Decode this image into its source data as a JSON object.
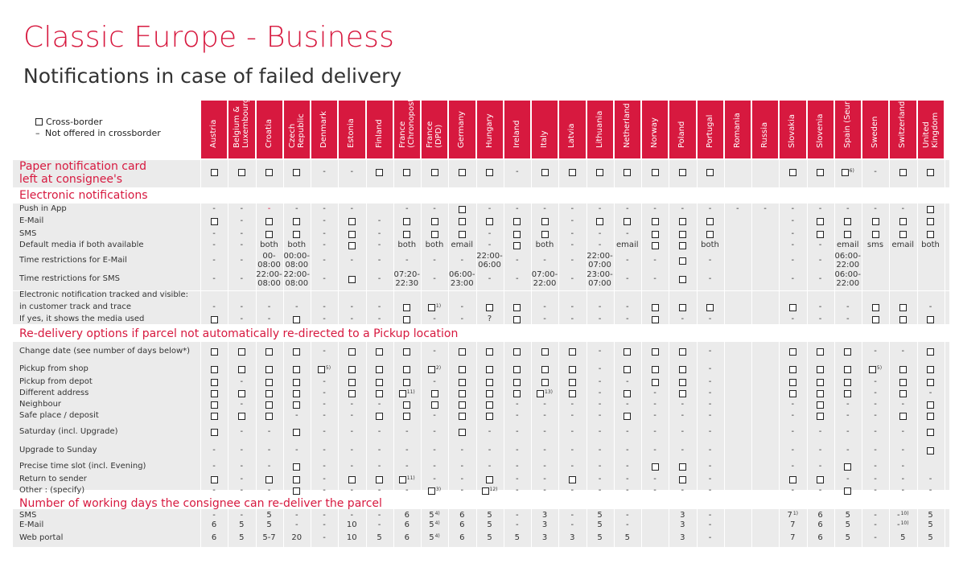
{
  "title": "Classic Europe - Business",
  "subtitle": "Notifications in case of failed delivery",
  "legend": {
    "box_text": "Cross-border",
    "dash_text": "Not offered in crossborder"
  },
  "countries": [
    {
      "name": "Austria"
    },
    {
      "name": "Belgium &",
      "name2": "Luxembourg"
    },
    {
      "name": "Croatia"
    },
    {
      "name": "Czech",
      "name2": "Republic"
    },
    {
      "name": "Denmark"
    },
    {
      "name": "Estonia"
    },
    {
      "name": "Finland"
    },
    {
      "name": "France",
      "name2": "(Chronopost)"
    },
    {
      "name": "France",
      "name2": "(DPD)"
    },
    {
      "name": "Germany"
    },
    {
      "name": "Hungary"
    },
    {
      "name": "Ireland"
    },
    {
      "name": "Italy"
    },
    {
      "name": "Latvia"
    },
    {
      "name": "Lithuania"
    },
    {
      "name": "Netherland"
    },
    {
      "name": "Norway"
    },
    {
      "name": "Poland"
    },
    {
      "name": "Portugal"
    },
    {
      "name": "Romania"
    },
    {
      "name": "Russia"
    },
    {
      "name": "Slovakia"
    },
    {
      "name": "Slovenia"
    },
    {
      "name": "Spain (Seur)"
    },
    {
      "name": "Sweden"
    },
    {
      "name": "Switzerland"
    },
    {
      "name": "United",
      "name2": "Kingdom"
    }
  ],
  "sections": [
    {
      "title": "Paper notification card",
      "title2": "left at consignee's",
      "y": 199,
      "rows": [
        {
          "label": "",
          "y": 214,
          "cells": [
            "x",
            "x",
            "x",
            "x",
            "-",
            "-",
            "x",
            "x",
            "x",
            "x",
            "x",
            "-",
            "x",
            "x",
            "x",
            "x",
            "x",
            "x",
            "x",
            "",
            "",
            "x",
            "x",
            "x^6)",
            "-",
            "x",
            "x"
          ]
        }
      ]
    },
    {
      "title": "Electronic notifications",
      "y": 235,
      "rows": [
        {
          "label": "Push in App",
          "y": 260,
          "cells": [
            "-",
            "-",
            "r-",
            "-",
            "-",
            "-",
            "",
            "-",
            "-",
            "x",
            "-",
            "-",
            "-",
            "-",
            "-",
            "-",
            "-",
            "-",
            "-",
            "-",
            "-",
            "-",
            "-",
            "-",
            "-",
            "-",
            "x"
          ]
        },
        {
          "label": "E-Mail",
          "y": 275,
          "cells": [
            "x",
            "-",
            "x",
            "x",
            "-",
            "x",
            "-",
            "x",
            "x",
            "x",
            "x",
            "x",
            "x",
            "-",
            "x",
            "x",
            "x",
            "x",
            "x",
            "",
            "",
            "-",
            "x",
            "x",
            "x",
            "x",
            "x"
          ]
        },
        {
          "label": "SMS",
          "y": 291,
          "cells": [
            "-",
            "-",
            "x",
            "x",
            "-",
            "x",
            "-",
            "x",
            "x",
            "x",
            "-",
            "x",
            "x",
            "-",
            "-",
            "-",
            "x",
            "x",
            "x",
            "",
            "",
            "-",
            "x",
            "x",
            "x",
            "x",
            "x"
          ]
        },
        {
          "label": "Default media if both available",
          "y": 305,
          "cells": [
            "-",
            "-",
            "both",
            "both",
            "-",
            "x",
            "-",
            "both",
            "both",
            "email",
            "-",
            "x",
            "both",
            "-",
            "-",
            "email",
            "x",
            "x",
            "both",
            "",
            "",
            "-",
            "-",
            "email",
            "sms",
            "email",
            "both"
          ]
        },
        {
          "label": "Time restrictions for E-Mail",
          "y": 324,
          "cells": [
            "-",
            "-",
            "00-|08:00",
            "00:00-|08:00",
            "-",
            "-",
            "-",
            "-",
            "-",
            "-",
            "22:00-|06:00",
            "-",
            "-",
            "-",
            "22:00-|07:00",
            "-",
            "-",
            "x",
            "-",
            "",
            "",
            "-",
            "-",
            "06:00-|22:00",
            "",
            "",
            ""
          ]
        },
        {
          "label": "Time restrictions for SMS",
          "y": 347,
          "cells": [
            "-",
            "-",
            "22:00-|08:00",
            "22:00-|08:00",
            "-",
            "x",
            "-",
            "07:20-|22:30",
            "-",
            "06:00-|23:00",
            "-",
            "-",
            "07:00-|22:00",
            "-",
            "23:00-|07:00",
            "-",
            "-",
            "x",
            "-",
            "",
            "",
            "-",
            "-",
            "06:00-|22:00",
            "",
            "",
            ""
          ]
        }
      ]
    },
    {
      "title": "",
      "y": 0,
      "rows": [
        {
          "label": "Electronic notification tracked and visible:",
          "y": 367,
          "cells": []
        },
        {
          "label": "in customer track and trace",
          "y": 382,
          "cells": [
            "-",
            "-",
            "-",
            "-",
            "-",
            "-",
            "-",
            "x",
            "x^1)",
            "-",
            "x",
            "x",
            "-",
            "-",
            "-",
            "-",
            "x",
            "x",
            "x",
            "",
            "",
            "x",
            "-",
            "-",
            "x",
            "x",
            "-"
          ]
        },
        {
          "label": "If yes, it shows the media used",
          "y": 397,
          "cells": [
            "x",
            "-",
            "-",
            "x",
            "-",
            "-",
            "-",
            "x",
            "-",
            "-",
            "?",
            "x",
            "-",
            "-",
            "-",
            "-",
            "x",
            "-",
            "-",
            "",
            "",
            "-",
            "-",
            "-",
            "x",
            "x",
            "x"
          ]
        }
      ]
    },
    {
      "title": "Re-delivery options if parcel not automatically re-directed to a Pickup location",
      "y": 407,
      "rows": [
        {
          "label": "Change date (see number of days below*)",
          "y": 437,
          "cells": [
            "x",
            "x",
            "x",
            "x",
            "-",
            "x",
            "x",
            "x",
            "-",
            "x",
            "x",
            "x",
            "x",
            "x",
            "-",
            "x",
            "x",
            "x",
            "-",
            "",
            "",
            "x",
            "x",
            "x",
            "-",
            "-",
            "x"
          ]
        },
        {
          "label": "Pickup from shop",
          "y": 459,
          "cells": [
            "x",
            "x",
            "x",
            "x",
            "x^5)",
            "x",
            "x",
            "x",
            "x^2)",
            "x",
            "x",
            "x",
            "x",
            "x",
            "-",
            "x",
            "x",
            "x",
            "-",
            "",
            "",
            "x",
            "x",
            "x",
            "x^5)",
            "x",
            "x"
          ]
        },
        {
          "label": "Pickup from depot",
          "y": 475,
          "cells": [
            "x",
            "-",
            "x",
            "x",
            "-",
            "x",
            "x",
            "x",
            "-",
            "x",
            "x",
            "x",
            "x",
            "x",
            "-",
            "-",
            "x",
            "x",
            "-",
            "",
            "",
            "x",
            "x",
            "x",
            "-",
            "x",
            "x"
          ]
        },
        {
          "label": "Different address",
          "y": 489,
          "cells": [
            "x",
            "x",
            "x",
            "x",
            "-",
            "x",
            "x",
            "x^11)",
            "x",
            "x",
            "x",
            "x",
            "x^13)",
            "x",
            "-",
            "x",
            "-",
            "x",
            "-",
            "",
            "",
            "x",
            "x",
            "x",
            "-",
            "x",
            "-"
          ]
        },
        {
          "label": "Neighbour",
          "y": 503,
          "cells": [
            "x",
            "-",
            "x",
            "x",
            "-",
            "-",
            "-",
            "x",
            "x",
            "x",
            "x",
            "-",
            "-",
            "-",
            "-",
            "-",
            "-",
            "-",
            "-",
            "",
            "",
            "-",
            "x",
            "-",
            "-",
            "-",
            "x"
          ]
        },
        {
          "label": "Safe place / deposit",
          "y": 517,
          "cells": [
            "x",
            "x",
            "x",
            "-",
            "-",
            "-",
            "x",
            "x",
            "-",
            "x",
            "x",
            "-",
            "-",
            "-",
            "-",
            "x",
            "-",
            "-",
            "-",
            "",
            "",
            "-",
            "x",
            "-",
            "-",
            "x",
            "x"
          ]
        },
        {
          "label": "Saturday (incl. Upgrade)",
          "y": 537,
          "cells": [
            "x",
            "-",
            "-",
            "x",
            "-",
            "-",
            "-",
            "-",
            "-",
            "x",
            "-",
            "-",
            "-",
            "-",
            "-",
            "-",
            "-",
            "-",
            "-",
            "",
            "",
            "-",
            "-",
            "-",
            "-",
            "-",
            "x"
          ]
        },
        {
          "label": "Upgrade to Sunday",
          "y": 560,
          "cells": [
            "-",
            "-",
            "-",
            "-",
            "-",
            "-",
            "-",
            "-",
            "-",
            "-",
            "-",
            "-",
            "-",
            "-",
            "-",
            "-",
            "-",
            "-",
            "-",
            "",
            "",
            "-",
            "-",
            "-",
            "-",
            "-",
            "x"
          ]
        },
        {
          "label": "Precise time slot (incl. Evening)",
          "y": 580,
          "cells": [
            "-",
            "-",
            "-",
            "x",
            "-",
            "-",
            "-",
            "-",
            "-",
            "-",
            "-",
            "-",
            "-",
            "-",
            "-",
            "-",
            "x",
            "x",
            "-",
            "",
            "",
            "-",
            "-",
            "x",
            "-",
            "-",
            ""
          ]
        },
        {
          "label": "Return to sender",
          "y": 596,
          "cells": [
            "x",
            "-",
            "x",
            "x",
            "-",
            "x",
            "x",
            "x^11)",
            "-",
            "-",
            "x",
            "-",
            "-",
            "x",
            "-",
            "-",
            "-",
            "x",
            "-",
            "",
            "",
            "x",
            "x",
            "-",
            "-",
            "-",
            "-"
          ]
        },
        {
          "label": "Other : (specify)",
          "y": 610,
          "cells": [
            "-",
            "-",
            "-",
            "x",
            "-",
            "-",
            "-",
            "-",
            "x^3)",
            "-",
            "x^12)",
            "-",
            "-",
            "-",
            "-",
            "-",
            "-",
            "-",
            "-",
            "",
            "",
            "-",
            "-",
            "x",
            "-",
            "-",
            "-"
          ]
        }
      ]
    },
    {
      "title": "Number of working days the consignee can re-deliver the parcel",
      "y": 618,
      "rows": [
        {
          "label": "SMS",
          "y": 641,
          "cells": [
            "-",
            "-",
            "5",
            "-",
            "-",
            "-",
            "-",
            "6",
            "5 4)",
            "6",
            "5",
            "-",
            "3",
            "-",
            "5",
            "-",
            "",
            "3",
            "-",
            "",
            "",
            "7 1)",
            "6",
            "5",
            "-",
            "- 10)",
            "5"
          ]
        },
        {
          "label": "E-Mail",
          "y": 653,
          "cells": [
            "6",
            "5",
            "5",
            "-",
            "-",
            "10",
            "-",
            "6",
            "5 4)",
            "6",
            "5",
            "-",
            "3",
            "-",
            "5",
            "-",
            "",
            "3",
            "-",
            "",
            "",
            "7",
            "6",
            "5",
            "-",
            "- 10)",
            "5"
          ]
        },
        {
          "label": "Web portal",
          "y": 669,
          "cells": [
            "6",
            "5",
            "5-7",
            "20",
            "-",
            "10",
            "5",
            "6",
            "5 4)",
            "6",
            "5",
            "5",
            "3",
            "3",
            "5",
            "5",
            "",
            "3",
            "-",
            "",
            "",
            "7",
            "6",
            "5",
            "-",
            "5",
            "5"
          ]
        }
      ]
    }
  ]
}
